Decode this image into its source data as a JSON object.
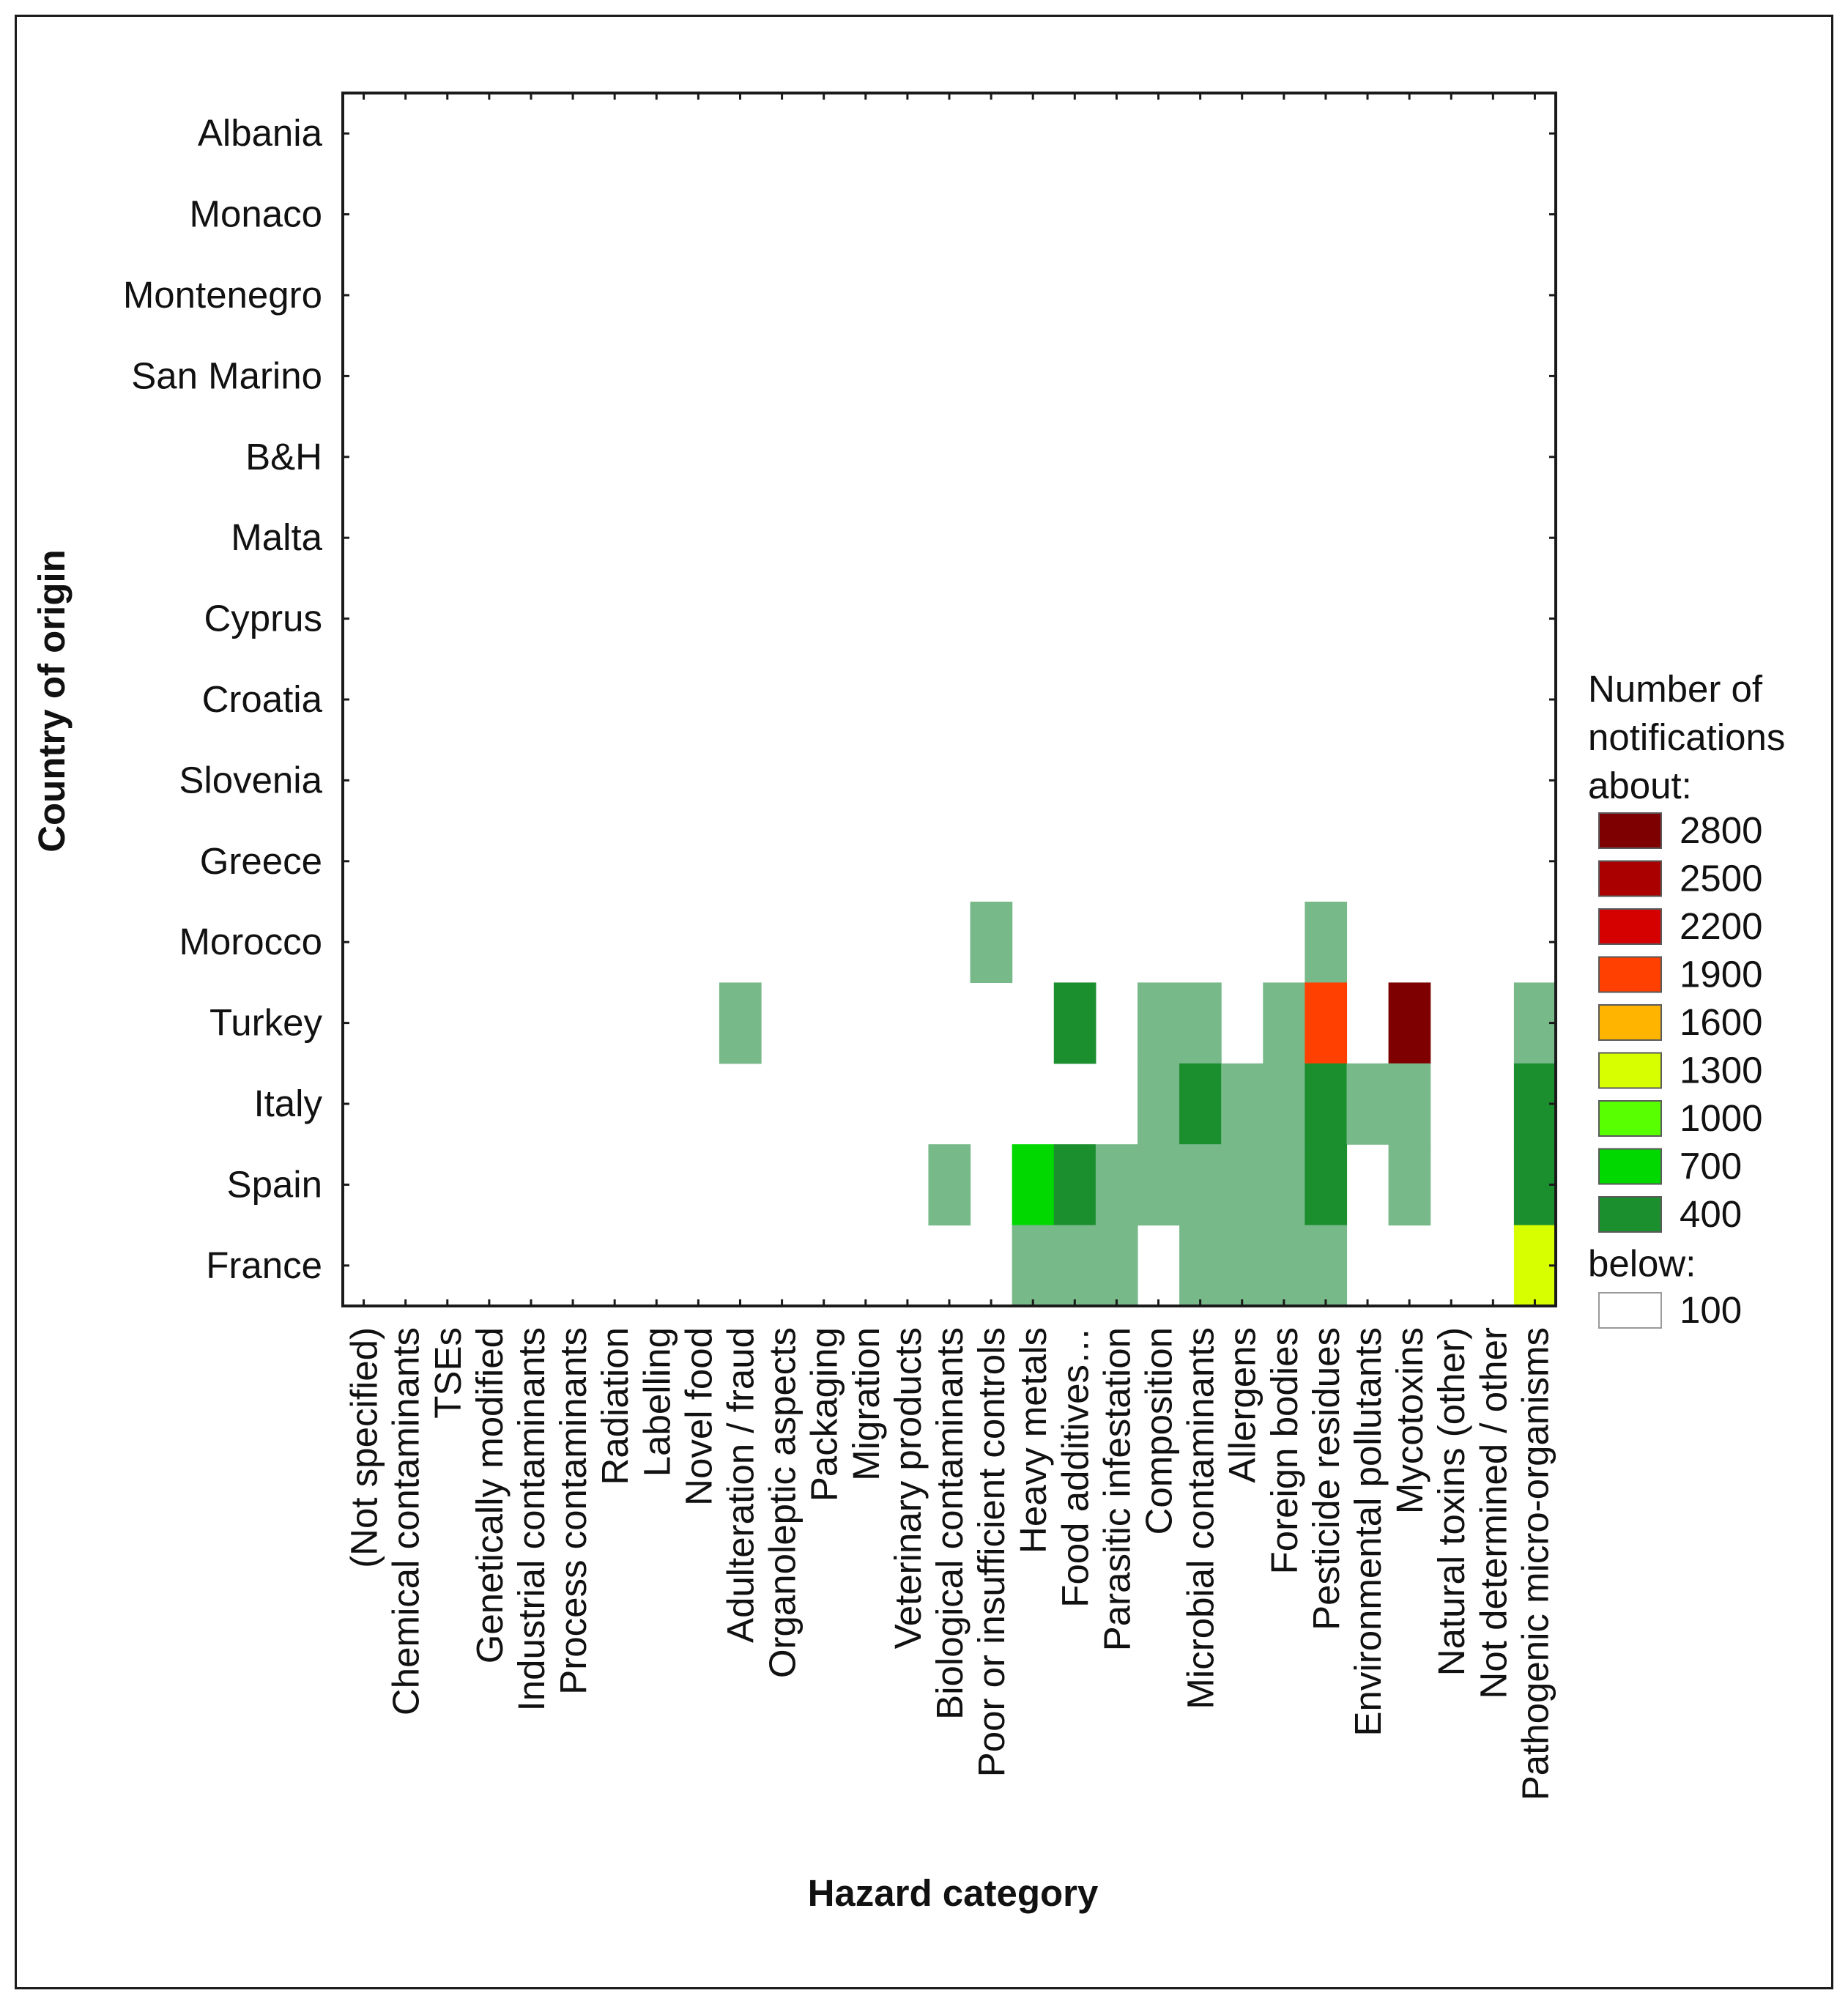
{
  "chart_data": {
    "type": "heatmap",
    "xlabel": "Hazard category",
    "ylabel": "Country of origin",
    "x_categories": [
      "(Not specified)",
      "Chemical contaminants",
      "TSEs",
      "Genetically modified",
      "Industrial contaminants",
      "Process contaminants",
      "Radiation",
      "Labelling",
      "Novel food",
      "Adulteration / fraud",
      "Organoleptic aspects",
      "Packaging",
      "Migration",
      "Veterinary products",
      "Biological contaminants",
      "Poor or insufficient controls",
      "Heavy metals",
      "Food additives…",
      "Parasitic infestation",
      "Composition",
      "Microbial contaminants",
      "Allergens",
      "Foreign bodies",
      "Pesticide residues",
      "Environmental pollutants",
      "Mycotoxins",
      "Natural toxins (other)",
      "Not determined / other",
      "Pathogenic micro-organisms"
    ],
    "y_categories": [
      "Albania",
      "Monaco",
      "Montenegro",
      "San Marino",
      "B&H",
      "Malta",
      "Cyprus",
      "Croatia",
      "Slovenia",
      "Greece",
      "Morocco",
      "Turkey",
      "Italy",
      "Spain",
      "France"
    ],
    "color_scale": [
      {
        "level": 2800,
        "color": "#7f0000"
      },
      {
        "level": 2500,
        "color": "#aa0000"
      },
      {
        "level": 2200,
        "color": "#d50000"
      },
      {
        "level": 1900,
        "color": "#ff4000"
      },
      {
        "level": 1600,
        "color": "#ffb400"
      },
      {
        "level": 1300,
        "color": "#d8ff00"
      },
      {
        "level": 1000,
        "color": "#58ff00"
      },
      {
        "level": 700,
        "color": "#00d800"
      },
      {
        "level": 400,
        "color": "#1b8e2e"
      }
    ],
    "low_bin_color": "#78b98a",
    "below_level": 100,
    "below_color": "#ffffff",
    "cells": [
      {
        "country": "Morocco",
        "hazard": "Poor or insufficient controls",
        "value": 250
      },
      {
        "country": "Morocco",
        "hazard": "Pesticide residues",
        "value": 250
      },
      {
        "country": "Turkey",
        "hazard": "Adulteration / fraud",
        "value": 250
      },
      {
        "country": "Turkey",
        "hazard": "Food additives…",
        "value": 500
      },
      {
        "country": "Turkey",
        "hazard": "Composition",
        "value": 250
      },
      {
        "country": "Turkey",
        "hazard": "Microbial contaminants",
        "value": 250
      },
      {
        "country": "Turkey",
        "hazard": "Foreign bodies",
        "value": 250
      },
      {
        "country": "Turkey",
        "hazard": "Pesticide residues",
        "value": 2000
      },
      {
        "country": "Turkey",
        "hazard": "Mycotoxins",
        "value": 2800
      },
      {
        "country": "Turkey",
        "hazard": "Pathogenic micro-organisms",
        "value": 250
      },
      {
        "country": "Italy",
        "hazard": "Composition",
        "value": 250
      },
      {
        "country": "Italy",
        "hazard": "Microbial contaminants",
        "value": 400
      },
      {
        "country": "Italy",
        "hazard": "Allergens",
        "value": 250
      },
      {
        "country": "Italy",
        "hazard": "Foreign bodies",
        "value": 250
      },
      {
        "country": "Italy",
        "hazard": "Pesticide residues",
        "value": 450
      },
      {
        "country": "Italy",
        "hazard": "Environmental pollutants",
        "value": 250
      },
      {
        "country": "Italy",
        "hazard": "Mycotoxins",
        "value": 250
      },
      {
        "country": "Italy",
        "hazard": "Pathogenic micro-organisms",
        "value": 500
      },
      {
        "country": "Spain",
        "hazard": "Biological contaminants",
        "value": 250
      },
      {
        "country": "Spain",
        "hazard": "Heavy metals",
        "value": 700
      },
      {
        "country": "Spain",
        "hazard": "Food additives…",
        "value": 400
      },
      {
        "country": "Spain",
        "hazard": "Parasitic infestation",
        "value": 250
      },
      {
        "country": "Spain",
        "hazard": "Composition",
        "value": 250
      },
      {
        "country": "Spain",
        "hazard": "Microbial contaminants",
        "value": 250
      },
      {
        "country": "Spain",
        "hazard": "Allergens",
        "value": 250
      },
      {
        "country": "Spain",
        "hazard": "Foreign bodies",
        "value": 250
      },
      {
        "country": "Spain",
        "hazard": "Pesticide residues",
        "value": 400
      },
      {
        "country": "Spain",
        "hazard": "Mycotoxins",
        "value": 250
      },
      {
        "country": "Spain",
        "hazard": "Pathogenic micro-organisms",
        "value": 500
      },
      {
        "country": "France",
        "hazard": "Heavy metals",
        "value": 250
      },
      {
        "country": "France",
        "hazard": "Food additives…",
        "value": 250
      },
      {
        "country": "France",
        "hazard": "Parasitic infestation",
        "value": 250
      },
      {
        "country": "France",
        "hazard": "Microbial contaminants",
        "value": 250
      },
      {
        "country": "France",
        "hazard": "Allergens",
        "value": 250
      },
      {
        "country": "France",
        "hazard": "Foreign bodies",
        "value": 250
      },
      {
        "country": "France",
        "hazard": "Pesticide residues",
        "value": 250
      },
      {
        "country": "France",
        "hazard": "Pathogenic micro-organisms",
        "value": 1300
      }
    ],
    "legend": {
      "title_lines": [
        "Number of",
        "notifications",
        "about:"
      ],
      "below_label": "below:",
      "entries": [
        {
          "label": "2800",
          "color": "#7f0000"
        },
        {
          "label": "2500",
          "color": "#aa0000"
        },
        {
          "label": "2200",
          "color": "#d50000"
        },
        {
          "label": "1900",
          "color": "#ff4000"
        },
        {
          "label": "1600",
          "color": "#ffb400"
        },
        {
          "label": "1300",
          "color": "#d8ff00"
        },
        {
          "label": "1000",
          "color": "#58ff00"
        },
        {
          "label": "700",
          "color": "#00d800"
        },
        {
          "label": "400",
          "color": "#1b8e2e"
        }
      ],
      "below_entry": {
        "label": "100",
        "color": "#ffffff"
      }
    }
  }
}
